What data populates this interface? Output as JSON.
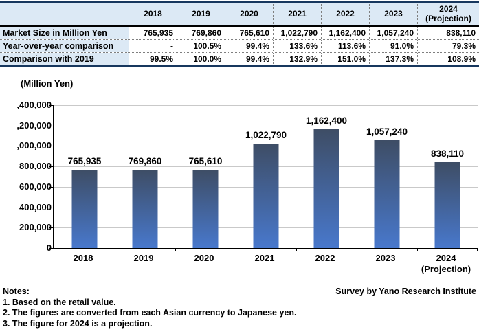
{
  "table": {
    "corner": "",
    "columns": [
      "2018",
      "2019",
      "2020",
      "2021",
      "2022",
      "2023",
      "2024\n(Projection)"
    ],
    "rows": [
      {
        "label": "Market Size in Million Yen",
        "values": [
          "765,935",
          "769,860",
          "765,610",
          "1,022,790",
          "1,162,400",
          "1,057,240",
          "838,110"
        ]
      },
      {
        "label": "Year-over-year comparison",
        "values": [
          "-",
          "100.5%",
          "99.4%",
          "133.6%",
          "113.6%",
          "91.0%",
          "79.3%"
        ]
      },
      {
        "label": "Comparison with 2019",
        "values": [
          "99.5%",
          "100.0%",
          "99.4%",
          "132.9%",
          "151.0%",
          "137.3%",
          "108.9%"
        ]
      }
    ],
    "colors": {
      "header_bg": "#DCE9F5",
      "outer_border": "#17375E",
      "dotted_rule": "#7F7F7F"
    }
  },
  "chart_data": {
    "type": "bar",
    "title": "(Million Yen)",
    "categories": [
      "2018",
      "2019",
      "2020",
      "2021",
      "2022",
      "2023",
      "2024\n(Projection)"
    ],
    "values": [
      765935,
      769860,
      765610,
      1022790,
      1162400,
      1057240,
      838110
    ],
    "value_labels": [
      "765,935",
      "769,860",
      "765,610",
      "1,022,790",
      "1,162,400",
      "1,057,240",
      "838,110"
    ],
    "xlabel": "",
    "ylabel": "(Million Yen)",
    "ylim": [
      0,
      1400000
    ],
    "ytick_step": 200000,
    "ytick_labels_top_down": [
      ",400,000",
      ",200,000",
      ",000,000",
      "800,000",
      "600,000",
      "400,000",
      "200,000",
      "0"
    ],
    "grid": true,
    "legend": "none",
    "bar_color_top": "#3E4D65",
    "bar_color_bottom": "#4878CC",
    "gridline_color": "#C9C9C9"
  },
  "notes": {
    "title": "Notes:",
    "items": [
      "1. Based on the retail value.",
      "2. The figures are converted from each Asian currency to Japanese yen.",
      "3. The figure for 2024 is a projection."
    ]
  },
  "footer": {
    "survey": "Survey by Yano Research Institute"
  }
}
